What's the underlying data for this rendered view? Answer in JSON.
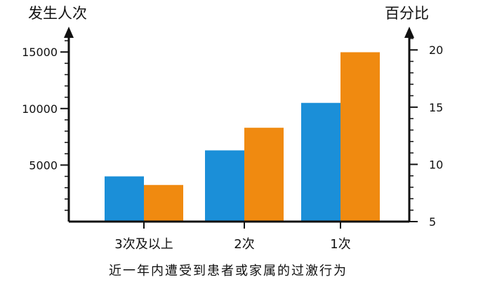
{
  "chart_data": {
    "type": "bar",
    "title": "",
    "caption": "近一年内遭受到患者或家属的过激行为",
    "categories": [
      "3次及以上",
      "2次",
      "1次"
    ],
    "left_axis": {
      "label": "发生人次",
      "ticks": [
        5000,
        10000,
        15000
      ],
      "tick_labels": [
        "5000",
        "10000",
        "15000"
      ],
      "range": [
        0,
        16500
      ]
    },
    "right_axis": {
      "label": "百分比",
      "ticks": [
        5,
        10,
        15,
        20
      ],
      "tick_labels": [
        "5",
        "10",
        "15",
        "20"
      ],
      "range": [
        5,
        21.3
      ]
    },
    "series": [
      {
        "axis": "left",
        "color": "#1B8FD8",
        "values": [
          4000,
          6300,
          10500
        ]
      },
      {
        "axis": "right",
        "color": "#F08A10",
        "values": [
          8.2,
          13.2,
          19.8
        ]
      }
    ],
    "grid": false,
    "legend": "none"
  }
}
